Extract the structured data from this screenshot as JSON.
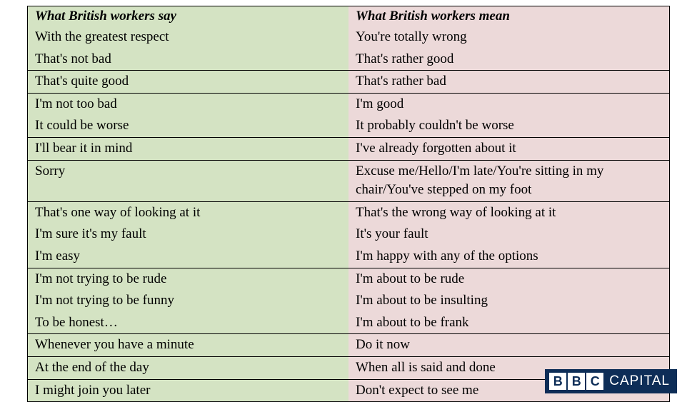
{
  "table": {
    "headers": {
      "say": "What British workers say",
      "mean": "What British workers mean"
    },
    "groups": [
      {
        "rows": [
          {
            "say": "With the greatest respect",
            "mean": "You're totally wrong"
          },
          {
            "say": "That's not bad",
            "mean": "That's rather good"
          }
        ]
      },
      {
        "rows": [
          {
            "say": "That's quite good",
            "mean": "That's rather bad"
          }
        ]
      },
      {
        "rows": [
          {
            "say": "I'm not too bad",
            "mean": "I'm good"
          },
          {
            "say": "It could be worse",
            "mean": "It probably couldn't be worse"
          }
        ]
      },
      {
        "rows": [
          {
            "say": "I'll bear it in mind",
            "mean": "I've already forgotten about it"
          }
        ]
      },
      {
        "rows": [
          {
            "say": "Sorry",
            "mean": "Excuse me/Hello/I'm late/You're sitting in my chair/You've stepped on my foot"
          }
        ]
      },
      {
        "rows": [
          {
            "say": "That's one way of looking at it",
            "mean": "That's the wrong way of looking at it"
          },
          {
            "say": "I'm sure it's my fault",
            "mean": "It's your fault"
          },
          {
            "say": "I'm easy",
            "mean": "I'm happy with any of the options"
          }
        ]
      },
      {
        "rows": [
          {
            "say": "I'm not trying to be rude",
            "mean": "I'm about to be rude"
          },
          {
            "say": "I'm not trying to be funny",
            "mean": "I'm about to be insulting"
          },
          {
            "say": "To be honest…",
            "mean": "I'm about to be frank"
          }
        ]
      },
      {
        "rows": [
          {
            "say": "Whenever you have a minute",
            "mean": "Do it now"
          }
        ]
      },
      {
        "rows": [
          {
            "say": "At the end of the day",
            "mean": "When all is said and done"
          }
        ]
      },
      {
        "rows": [
          {
            "say": "I might join you later",
            "mean": "Don't expect to see me"
          }
        ]
      }
    ],
    "colors": {
      "say_bg": "#d4e3c3",
      "mean_bg": "#ecd9d9",
      "border": "#000000"
    },
    "fontsize": 19
  },
  "logo": {
    "letters": [
      "B",
      "B",
      "C"
    ],
    "text": "CAPITAL",
    "bg_color": "#0d2d57",
    "block_bg": "#ffffff",
    "text_color": "#ffffff"
  }
}
